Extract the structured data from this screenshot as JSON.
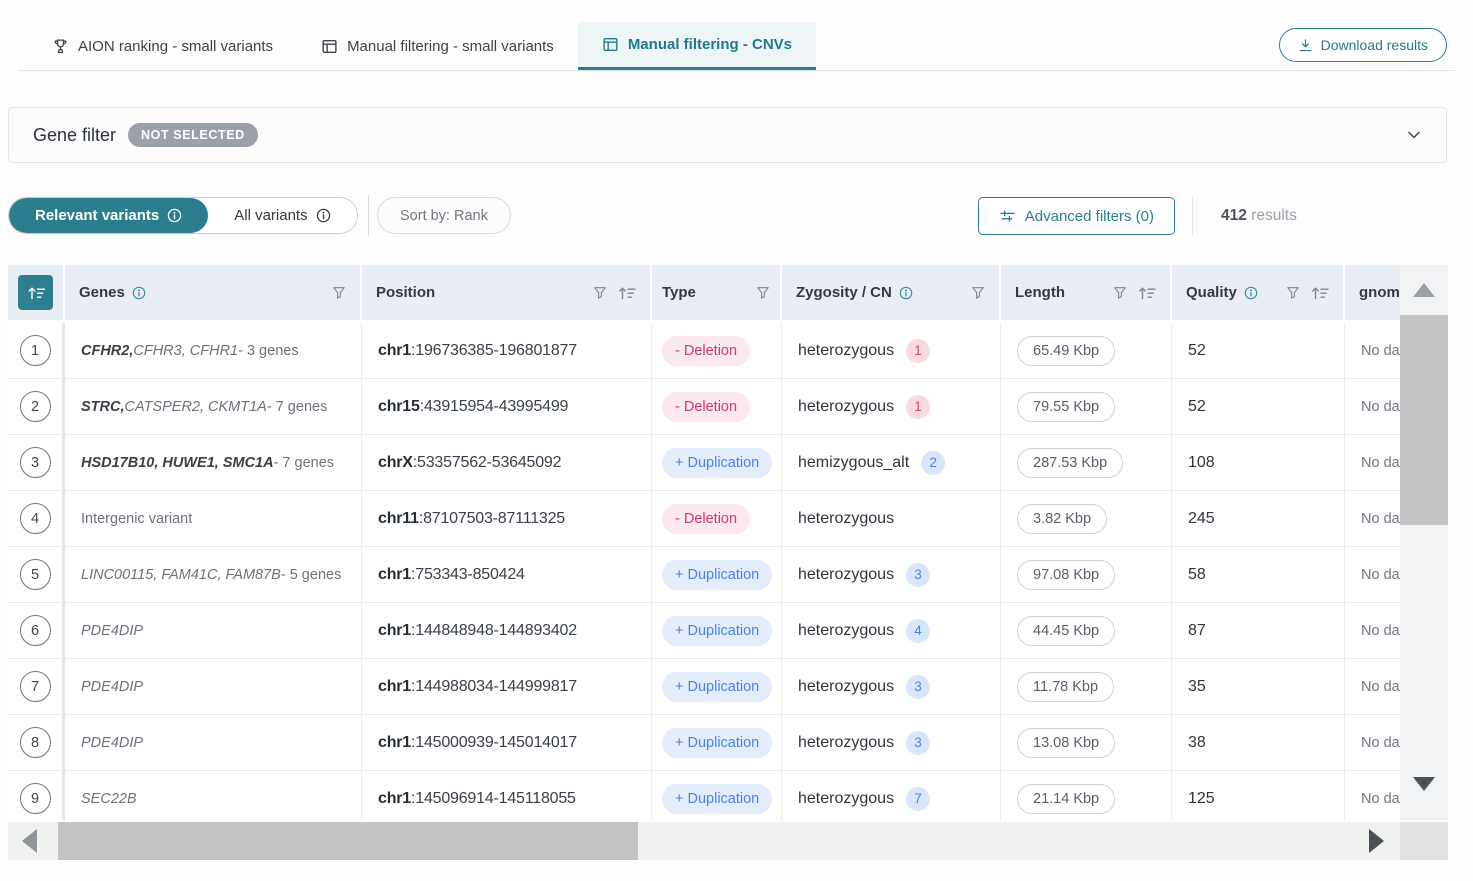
{
  "tabs": [
    {
      "label": "AION ranking - small variants",
      "icon": "trophy-icon",
      "active": false
    },
    {
      "label": "Manual filtering - small variants",
      "icon": "grid-tab-icon",
      "active": false
    },
    {
      "label": "Manual filtering - CNVs",
      "icon": "grid-tab-icon",
      "active": true
    }
  ],
  "download_button": "Download results",
  "gene_filter": {
    "label": "Gene filter",
    "badge": "NOT SELECTED"
  },
  "controls": {
    "relevant_variants": "Relevant variants",
    "all_variants": "All variants",
    "sort_by": "Sort by: Rank",
    "advanced_filters": "Advanced filters (0)",
    "results_count": "412",
    "results_label": "results"
  },
  "table": {
    "columns": [
      {
        "label": "Genes",
        "info": true,
        "filter": true,
        "sort": false
      },
      {
        "label": "Position",
        "info": false,
        "filter": true,
        "sort": true
      },
      {
        "label": "Type",
        "info": false,
        "filter": true,
        "sort": false
      },
      {
        "label": "Zygosity / CN",
        "info": true,
        "filter": true,
        "sort": false
      },
      {
        "label": "Length",
        "info": false,
        "filter": true,
        "sort": true
      },
      {
        "label": "Quality",
        "info": true,
        "filter": true,
        "sort": true
      },
      {
        "label": "gnomAD",
        "info": false,
        "filter": false,
        "sort": false
      }
    ],
    "rows": [
      {
        "num": "1",
        "genes": [
          {
            "text": "CFHR2,",
            "style": "b"
          },
          {
            "text": " CFHR3, CFHR1",
            "style": "i"
          },
          {
            "text": " - 3 genes",
            "style": "p"
          }
        ],
        "pos_chr": "chr1",
        "pos_rest": ":196736385-196801877",
        "type_label": "- Deletion",
        "type_kind": "del",
        "zygosity": "heterozygous",
        "cn": "1",
        "cn_kind": "pink",
        "length": "65.49 Kbp",
        "quality": "52",
        "gnomad": "No data"
      },
      {
        "num": "2",
        "genes": [
          {
            "text": "STRC,",
            "style": "b"
          },
          {
            "text": " CATSPER2, CKMT1A",
            "style": "i"
          },
          {
            "text": " - 7 genes",
            "style": "p"
          }
        ],
        "pos_chr": "chr15",
        "pos_rest": ":43915954-43995499",
        "type_label": "- Deletion",
        "type_kind": "del",
        "zygosity": "heterozygous",
        "cn": "1",
        "cn_kind": "pink",
        "length": "79.55 Kbp",
        "quality": "52",
        "gnomad": "No data"
      },
      {
        "num": "3",
        "genes": [
          {
            "text": "HSD17B10, HUWE1, SMC1A",
            "style": "b"
          },
          {
            "text": " - 7 genes",
            "style": "p"
          }
        ],
        "pos_chr": "chrX",
        "pos_rest": ":53357562-53645092",
        "type_label": "+ Duplication",
        "type_kind": "dup",
        "zygosity": "hemizygous_alt",
        "cn": "2",
        "cn_kind": "blue",
        "length": "287.53 Kbp",
        "quality": "108",
        "gnomad": "No data"
      },
      {
        "num": "4",
        "genes": [
          {
            "text": "Intergenic variant",
            "style": "p"
          }
        ],
        "pos_chr": "chr11",
        "pos_rest": ":87107503-87111325",
        "type_label": "- Deletion",
        "type_kind": "del",
        "zygosity": "heterozygous",
        "cn": "",
        "cn_kind": "",
        "length": "3.82 Kbp",
        "quality": "245",
        "gnomad": "No data"
      },
      {
        "num": "5",
        "genes": [
          {
            "text": "LINC00115, FAM41C, FAM87B",
            "style": "i"
          },
          {
            "text": " - 5 genes",
            "style": "p"
          }
        ],
        "pos_chr": "chr1",
        "pos_rest": ":753343-850424",
        "type_label": "+ Duplication",
        "type_kind": "dup",
        "zygosity": "heterozygous",
        "cn": "3",
        "cn_kind": "blue",
        "length": "97.08 Kbp",
        "quality": "58",
        "gnomad": "No data"
      },
      {
        "num": "6",
        "genes": [
          {
            "text": "PDE4DIP",
            "style": "i"
          }
        ],
        "pos_chr": "chr1",
        "pos_rest": ":144848948-144893402",
        "type_label": "+ Duplication",
        "type_kind": "dup",
        "zygosity": "heterozygous",
        "cn": "4",
        "cn_kind": "blue",
        "length": "44.45 Kbp",
        "quality": "87",
        "gnomad": "No data"
      },
      {
        "num": "7",
        "genes": [
          {
            "text": "PDE4DIP",
            "style": "i"
          }
        ],
        "pos_chr": "chr1",
        "pos_rest": ":144988034-144999817",
        "type_label": "+ Duplication",
        "type_kind": "dup",
        "zygosity": "heterozygous",
        "cn": "3",
        "cn_kind": "blue",
        "length": "11.78 Kbp",
        "quality": "35",
        "gnomad": "No data"
      },
      {
        "num": "8",
        "genes": [
          {
            "text": "PDE4DIP",
            "style": "i"
          }
        ],
        "pos_chr": "chr1",
        "pos_rest": ":145000939-145014017",
        "type_label": "+ Duplication",
        "type_kind": "dup",
        "zygosity": "heterozygous",
        "cn": "3",
        "cn_kind": "blue",
        "length": "13.08 Kbp",
        "quality": "38",
        "gnomad": "No data"
      },
      {
        "num": "9",
        "genes": [
          {
            "text": "SEC22B",
            "style": "i"
          }
        ],
        "pos_chr": "chr1",
        "pos_rest": ":145096914-145118055",
        "type_label": "+ Duplication",
        "type_kind": "dup",
        "zygosity": "heterozygous",
        "cn": "7",
        "cn_kind": "blue",
        "length": "21.14 Kbp",
        "quality": "125",
        "gnomad": "No data"
      }
    ]
  },
  "icons": {
    "tab_aion": "trophy-icon",
    "tab_manual": "grid-tab-icon",
    "download": "download-icon",
    "info": "info-icon",
    "filter": "funnel-icon",
    "sort": "sort-asc-icon",
    "gene_filter_expand": "chevron-down-icon",
    "advanced_filters": "filter-lines-icon"
  },
  "colors": {
    "accent_teal": "#2A7D8F",
    "header_bg": "#E9EEF4",
    "deletion_text": "#CF3A6A",
    "deletion_bg": "#FBE9EE",
    "duplication_text": "#4B82E8",
    "duplication_bg": "#E4EDFB",
    "not_selected_badge": "#9BA1AA",
    "scroll_thumb": "#C2C3C5"
  }
}
